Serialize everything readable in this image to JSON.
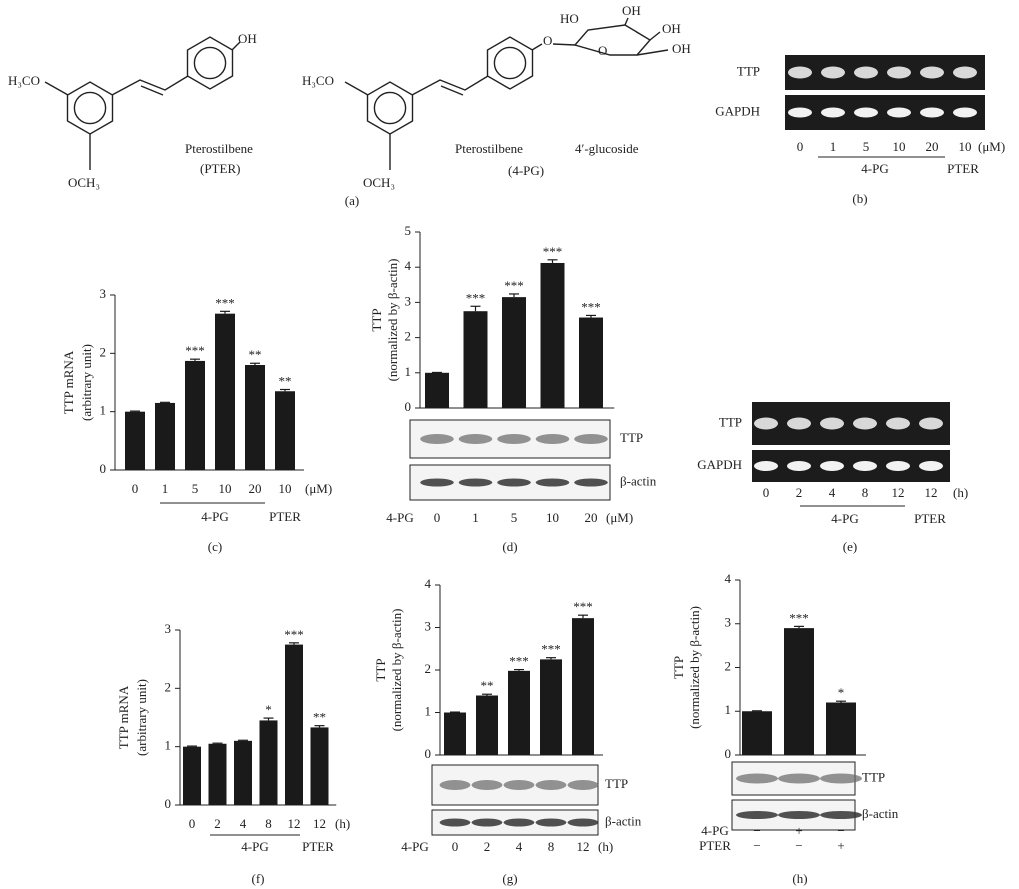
{
  "structures": {
    "pter": {
      "oh": "OH",
      "meo_left": "H₃CO",
      "meo_bottom": "OCH₃",
      "name": "Pterostilbene",
      "abbr": "(PTER)"
    },
    "pg": {
      "meo_left": "H₃CO",
      "meo_bottom": "OCH₃",
      "ether_o": "O",
      "ring_o": "O",
      "ho": "HO",
      "oh_top": "OH",
      "oh_right": "OH",
      "oh_ch2": "OH",
      "name": "Pterostilbene",
      "name_suffix": "4′-glucoside",
      "abbr": "(4-PG)"
    },
    "panel": "(a)"
  },
  "gels": [
    {
      "row_labels": [
        "TTP",
        "GAPDH"
      ],
      "lanes": [
        "0",
        "1",
        "5",
        "10",
        "20",
        "10"
      ],
      "unit": "(μM)",
      "group_labels": [
        "4-PG",
        "PTER"
      ],
      "panel": "(b)"
    },
    {
      "row_labels": [
        "TTP",
        "GAPDH"
      ],
      "lanes": [
        "0",
        "2",
        "4",
        "8",
        "12",
        "12"
      ],
      "unit": "(h)",
      "group_labels": [
        "4-PG",
        "PTER"
      ],
      "panel": "(e)"
    }
  ],
  "chart_data": [
    {
      "type": "bar",
      "panel": "(c)",
      "ylabel": [
        "TTP mRNA",
        "(arbitrary unit)"
      ],
      "categories": [
        "0",
        "1",
        "5",
        "10",
        "20",
        "10"
      ],
      "unit": "(μM)",
      "group_labels": [
        "4-PG",
        "PTER"
      ],
      "values": [
        1,
        1.15,
        1.87,
        2.68,
        1.8,
        1.35
      ],
      "errors": [
        0.01,
        0.01,
        0.03,
        0.04,
        0.03,
        0.03
      ],
      "annotations": [
        null,
        null,
        "***",
        "***",
        "**",
        "**"
      ],
      "color": "#1a1a1a",
      "ylim": [
        0,
        3
      ],
      "yticks": [
        0,
        1,
        2,
        3
      ]
    },
    {
      "type": "bar",
      "panel": "(d)",
      "ylabel": [
        "TTP",
        "(normalized by β-actin)"
      ],
      "categories": [
        "0",
        "1",
        "5",
        "10",
        "20"
      ],
      "row_label": "4-PG",
      "unit": "(μM)",
      "blot_labels": [
        "TTP",
        "β-actin"
      ],
      "values": [
        1,
        2.75,
        3.15,
        4.12,
        2.57
      ],
      "errors": [
        0.01,
        0.14,
        0.09,
        0.09,
        0.06
      ],
      "annotations": [
        null,
        "***",
        "***",
        "***",
        "***"
      ],
      "color": "#1a1a1a",
      "ylim": [
        0,
        5
      ],
      "yticks": [
        0,
        1,
        2,
        3,
        4,
        5
      ]
    },
    {
      "type": "bar",
      "panel": "(f)",
      "ylabel": [
        "TTP mRNA",
        "(arbitrary unit)"
      ],
      "categories": [
        "0",
        "2",
        "4",
        "8",
        "12",
        "12"
      ],
      "unit": "(h)",
      "group_labels": [
        "4-PG",
        "PTER"
      ],
      "values": [
        1,
        1.05,
        1.1,
        1.45,
        2.75,
        1.33
      ],
      "errors": [
        0.01,
        0.01,
        0.01,
        0.04,
        0.03,
        0.03
      ],
      "annotations": [
        null,
        null,
        null,
        "*",
        "***",
        "**"
      ],
      "color": "#1a1a1a",
      "ylim": [
        0,
        3
      ],
      "yticks": [
        0,
        1,
        2,
        3
      ]
    },
    {
      "type": "bar",
      "panel": "(g)",
      "ylabel": [
        "TTP",
        "(normalized by β-actin)"
      ],
      "categories": [
        "0",
        "2",
        "4",
        "8",
        "12"
      ],
      "row_label": "4-PG",
      "unit": "(h)",
      "blot_labels": [
        "TTP",
        "β-actin"
      ],
      "values": [
        1,
        1.4,
        1.98,
        2.25,
        3.22
      ],
      "errors": [
        0.01,
        0.03,
        0.03,
        0.04,
        0.07
      ],
      "annotations": [
        null,
        "**",
        "***",
        "***",
        "***"
      ],
      "color": "#1a1a1a",
      "ylim": [
        0,
        4
      ],
      "yticks": [
        0,
        1,
        2,
        3,
        4
      ]
    },
    {
      "type": "bar",
      "panel": "(h)",
      "ylabel": [
        "TTP",
        "(normalized by β-actin)"
      ],
      "categories": [
        null,
        null,
        null
      ],
      "blot_labels": [
        "TTP",
        "β-actin"
      ],
      "treatments": [
        {
          "name": "4-PG",
          "marks": [
            "−",
            "+",
            "−"
          ]
        },
        {
          "name": "PTER",
          "marks": [
            "−",
            "−",
            "+"
          ]
        }
      ],
      "values": [
        1,
        2.9,
        1.2
      ],
      "errors": [
        0.01,
        0.04,
        0.03
      ],
      "annotations": [
        null,
        "***",
        "*"
      ],
      "color": "#1a1a1a",
      "ylim": [
        0,
        4
      ],
      "yticks": [
        0,
        1,
        2,
        3,
        4
      ]
    }
  ]
}
